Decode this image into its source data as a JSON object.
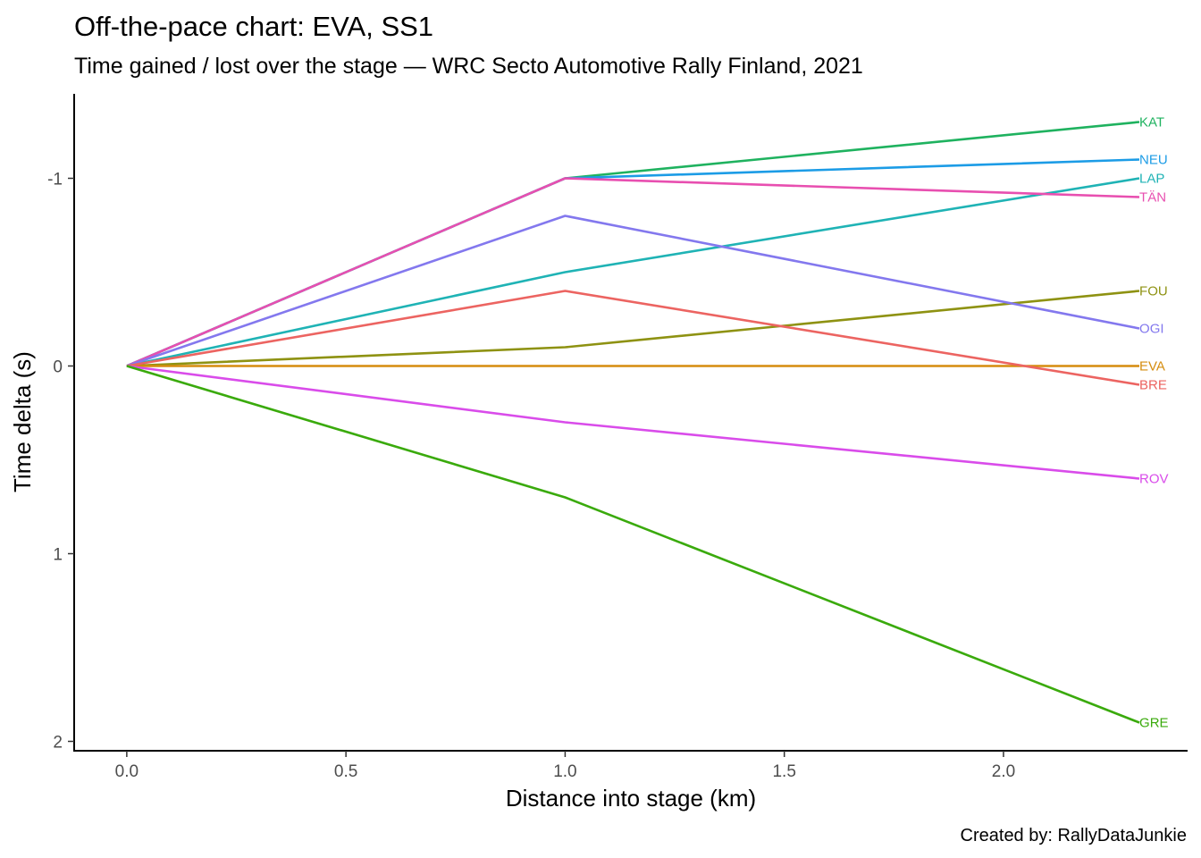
{
  "chart_data": {
    "type": "line",
    "title": "Off-the-pace chart: EVA, SS1",
    "subtitle": "Time gained / lost over the stage — WRC Secto Automotive Rally Finland, 2021",
    "xlabel": "Distance into stage (km)",
    "ylabel": "Time delta (s)",
    "caption": "Created by: RallyDataJunkie",
    "xlim": [
      -0.12,
      2.42
    ],
    "ylim": [
      -1.45,
      2.05
    ],
    "y_reversed": true,
    "grid": false,
    "xticks": [
      0.0,
      0.5,
      1.0,
      1.5,
      2.0
    ],
    "xtick_labels": [
      "0.0",
      "0.5",
      "1.0",
      "1.5",
      "2.0"
    ],
    "yticks": [
      -1,
      0,
      1,
      2
    ],
    "ytick_labels": [
      "-1",
      "0",
      "1",
      "2"
    ],
    "x": [
      0,
      1.0,
      2.31
    ],
    "series": [
      {
        "name": "KAT",
        "color": "#1fb25f",
        "values": [
          0,
          -1.0,
          -1.3
        ]
      },
      {
        "name": "NEU",
        "color": "#1c9ce6",
        "values": [
          0,
          -1.0,
          -1.1
        ]
      },
      {
        "name": "LAP",
        "color": "#1fb3b5",
        "values": [
          0,
          -0.5,
          -1.0
        ]
      },
      {
        "name": "TÄN",
        "color": "#e84fb0",
        "values": [
          0,
          -1.0,
          -0.9
        ]
      },
      {
        "name": "FOU",
        "color": "#8e9212",
        "values": [
          0,
          -0.1,
          -0.4
        ]
      },
      {
        "name": "OGI",
        "color": "#8378ee",
        "values": [
          0,
          -0.8,
          -0.2
        ]
      },
      {
        "name": "EVA",
        "color": "#d58c0e",
        "values": [
          0,
          0,
          0
        ]
      },
      {
        "name": "BRE",
        "color": "#ec6461",
        "values": [
          0,
          -0.4,
          0.1
        ]
      },
      {
        "name": "ROV",
        "color": "#d94cea",
        "values": [
          0,
          0.3,
          0.6
        ]
      },
      {
        "name": "GRE",
        "color": "#3aaa0c",
        "values": [
          0,
          0.7,
          1.9
        ]
      }
    ]
  }
}
